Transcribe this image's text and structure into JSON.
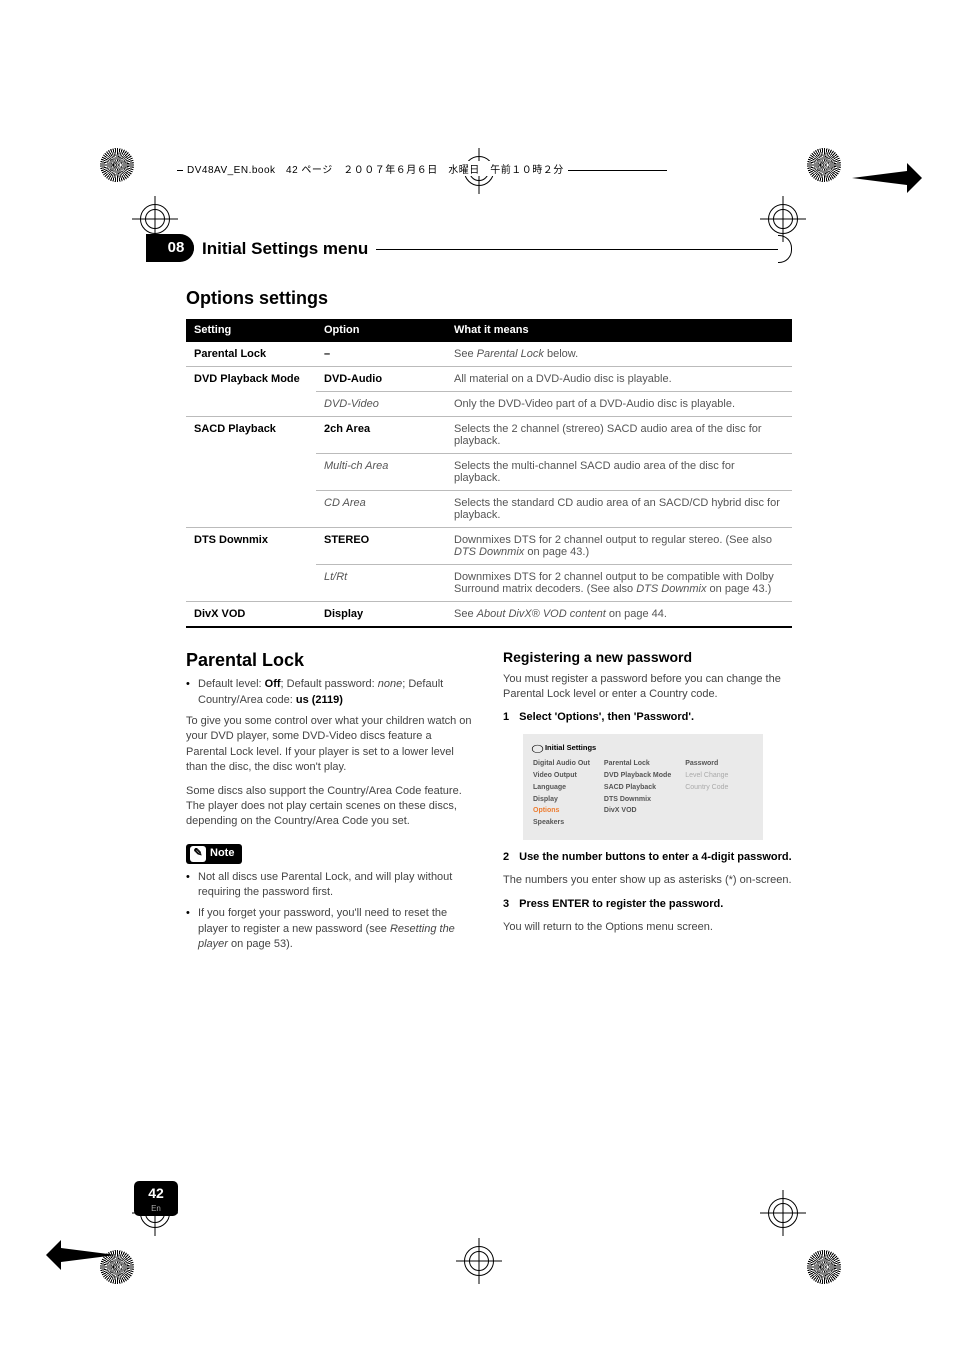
{
  "header_text": "DV48AV_EN.book　42 ページ　２００７年６月６日　水曜日　午前１０時２分",
  "chapter": {
    "number": "08",
    "title": "Initial Settings menu"
  },
  "section_options": "Options settings",
  "table": {
    "headers": {
      "setting": "Setting",
      "option": "Option",
      "meaning": "What it means"
    },
    "rows": [
      {
        "setting": "Parental Lock",
        "option": "–",
        "opt_bold": true,
        "meaning_pre": "See ",
        "meaning_it": "Parental Lock",
        "meaning_post": " below.",
        "thick": true
      },
      {
        "setting": "DVD Playback Mode",
        "option": "DVD-Audio",
        "opt_bold": true,
        "meaning": "All material on a DVD-Audio disc is playable.",
        "thick": true,
        "rowspan": 2
      },
      {
        "option": "DVD-Video",
        "opt_it": true,
        "meaning": "Only the DVD-Video part of a DVD-Audio disc is playable."
      },
      {
        "setting": "SACD Playback",
        "option": "2ch Area",
        "opt_bold": true,
        "meaning": "Selects the 2 channel (strereo) SACD audio area of the disc for playback.",
        "thick": true,
        "rowspan": 3
      },
      {
        "option": "Multi-ch Area",
        "opt_it": true,
        "meaning": "Selects the multi-channel SACD audio area of the disc for playback."
      },
      {
        "option": "CD Area",
        "opt_it": true,
        "meaning": "Selects the standard CD audio area of an SACD/CD hybrid disc for playback."
      },
      {
        "setting": "DTS Downmix",
        "option": "STEREO",
        "opt_bold": true,
        "meaning_pre": "Downmixes DTS for 2 channel output to regular stereo. (See also ",
        "meaning_it": "DTS Downmix",
        "meaning_post": " on page 43.)",
        "thick": true,
        "rowspan": 2
      },
      {
        "option": "Lt/Rt",
        "opt_it": true,
        "meaning_pre": "Downmixes DTS for 2 channel output to be compatible with Dolby Surround matrix decoders. (See also ",
        "meaning_it": "DTS Downmix",
        "meaning_post": " on page 43.)"
      },
      {
        "setting": "DivX VOD",
        "option": "Display",
        "opt_bold": true,
        "meaning_pre": "See ",
        "meaning_it": "About DivX® VOD content",
        "meaning_post": " on page 44.",
        "thick": true,
        "last": true
      }
    ]
  },
  "parental": {
    "title": "Parental Lock",
    "default_line_pre": "Default level: ",
    "default_off": "Off",
    "default_line_mid": "; Default password: ",
    "default_none": "none",
    "default_line_post": "; Default Country/Area code: ",
    "default_us": "us (2119)",
    "p1": "To give you some control over what your children watch on your DVD player, some DVD-Video discs feature a Parental Lock level. If your player is set to a lower level than the disc, the disc won't play.",
    "p2": "Some discs also support the Country/Area Code feature. The player does not play certain scenes on these discs, depending on the Country/Area Code you set."
  },
  "note_label": "Note",
  "note_items": [
    "Not all discs use Parental Lock, and will play without requiring the password first.",
    {
      "pre": "If you forget your password, you'll need to reset the player to register a new password (see ",
      "it": "Resetting the player",
      "post": " on page 53)."
    }
  ],
  "registering": {
    "title": "Registering a new password",
    "p1": "You must register a password before you can change the Parental Lock level or enter a Country code.",
    "step1": "Select 'Options', then 'Password'.",
    "screenshot_title": "Initial Settings",
    "col1": [
      "Digital Audio Out",
      "Video Output",
      "Language",
      "Display",
      "Options",
      "Speakers"
    ],
    "col2": [
      "Parental Lock",
      "DVD Playback Mode",
      "SACD Playback",
      "DTS Downmix",
      "DivX VOD"
    ],
    "col3": [
      "Password",
      "Level Change",
      "Country Code"
    ],
    "step2": "Use the number buttons to enter a 4-digit password.",
    "p2": "The numbers you enter show up as asterisks (*) on-screen.",
    "step3": "Press ENTER to register the password.",
    "p3": "You will return to the Options menu screen."
  },
  "page_number": "42",
  "page_lang": "En"
}
